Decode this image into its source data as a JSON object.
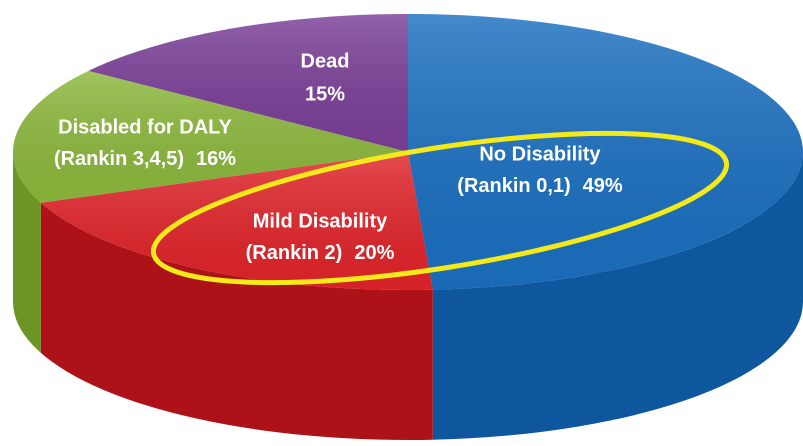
{
  "chart_data": {
    "type": "pie",
    "categories": [
      [
        "No Disability",
        "(Rankin 0,1)"
      ],
      [
        "Mild Disability",
        "(Rankin 2)"
      ],
      [
        "Disabled for DALY",
        "(Rankin 3,4,5)"
      ],
      [
        "Dead"
      ]
    ],
    "values": [
      49,
      20,
      16,
      15
    ],
    "value_labels": [
      "49%",
      "20%",
      "16%",
      "15%"
    ],
    "colors": [
      "#1a6fc0",
      "#e0242a",
      "#8cb83c",
      "#7b3f98"
    ],
    "side_colors": [
      "#0e579f",
      "#ad1219",
      "#6c9526",
      "#5d2a78"
    ]
  }
}
